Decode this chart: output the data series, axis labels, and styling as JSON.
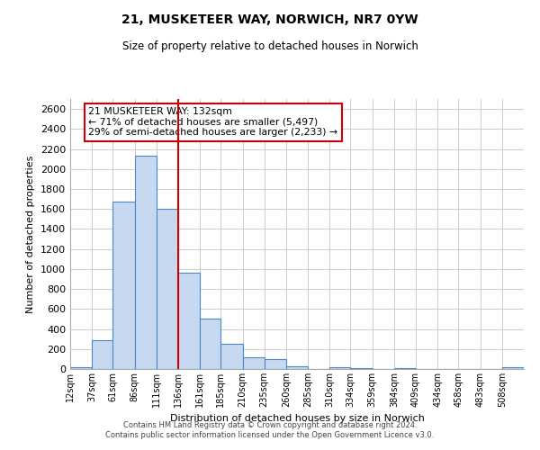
{
  "title": "21, MUSKETEER WAY, NORWICH, NR7 0YW",
  "subtitle": "Size of property relative to detached houses in Norwich",
  "xlabel": "Distribution of detached houses by size in Norwich",
  "ylabel": "Number of detached properties",
  "bar_color": "#c6d9f0",
  "bar_edge_color": "#4a86c8",
  "background_color": "#ffffff",
  "grid_color": "#cccccc",
  "vline_color": "#cc0000",
  "categories": [
    "12sqm",
    "37sqm",
    "61sqm",
    "86sqm",
    "111sqm",
    "136sqm",
    "161sqm",
    "185sqm",
    "210sqm",
    "235sqm",
    "260sqm",
    "285sqm",
    "310sqm",
    "334sqm",
    "359sqm",
    "384sqm",
    "409sqm",
    "434sqm",
    "458sqm",
    "483sqm",
    "508sqm"
  ],
  "values": [
    20,
    290,
    1670,
    2130,
    1600,
    960,
    505,
    250,
    120,
    95,
    30,
    0,
    15,
    5,
    0,
    5,
    0,
    0,
    0,
    0,
    20
  ],
  "bin_edges": [
    12,
    37,
    61,
    86,
    111,
    136,
    161,
    185,
    210,
    235,
    260,
    285,
    310,
    334,
    359,
    384,
    409,
    434,
    458,
    483,
    508,
    533
  ],
  "vline_x": 136,
  "ylim": [
    0,
    2700
  ],
  "yticks": [
    0,
    200,
    400,
    600,
    800,
    1000,
    1200,
    1400,
    1600,
    1800,
    2000,
    2200,
    2400,
    2600
  ],
  "annotation_line1": "21 MUSKETEER WAY: 132sqm",
  "annotation_line2": "← 71% of detached houses are smaller (5,497)",
  "annotation_line3": "29% of semi-detached houses are larger (2,233) →",
  "footer_line1": "Contains HM Land Registry data © Crown copyright and database right 2024.",
  "footer_line2": "Contains public sector information licensed under the Open Government Licence v3.0."
}
